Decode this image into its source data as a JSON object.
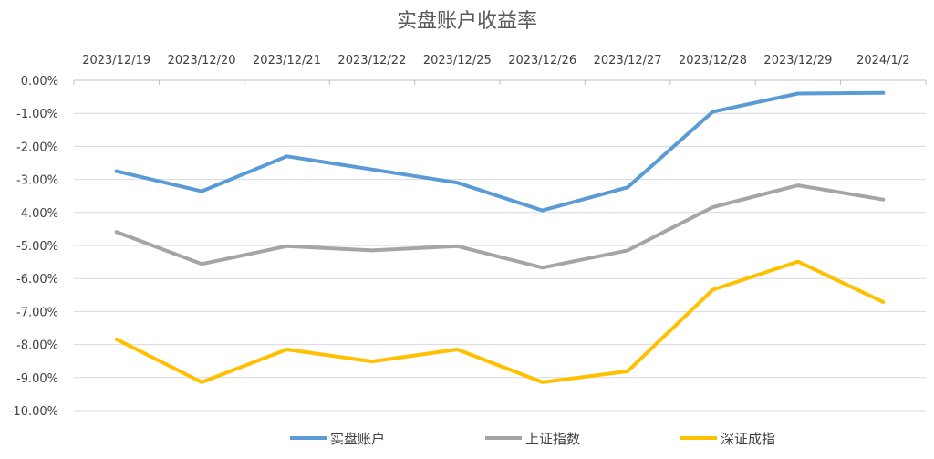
{
  "chart_data": {
    "type": "line",
    "title": "实盘账户收益率",
    "categories": [
      "2023/12/19",
      "2023/12/20",
      "2023/12/21",
      "2023/12/22",
      "2023/12/25",
      "2023/12/26",
      "2023/12/27",
      "2023/12/28",
      "2023/12/29",
      "2024/1/2"
    ],
    "y_ticks": [
      "0.00%",
      "-1.00%",
      "-2.00%",
      "-3.00%",
      "-4.00%",
      "-5.00%",
      "-6.00%",
      "-7.00%",
      "-8.00%",
      "-9.00%",
      "-10.00%"
    ],
    "ylim": [
      -10,
      0
    ],
    "grid": true,
    "x_axis_position": "top",
    "legend_position": "bottom",
    "series": [
      {
        "name": "实盘账户",
        "color": "#5B9BD5",
        "values": [
          -2.75,
          -3.36,
          -2.3,
          -2.7,
          -3.1,
          -3.94,
          -3.24,
          -0.95,
          -0.4,
          -0.38
        ]
      },
      {
        "name": "上证指数",
        "color": "#A5A5A5",
        "values": [
          -4.59,
          -5.56,
          -5.02,
          -5.15,
          -5.02,
          -5.67,
          -5.15,
          -3.84,
          -3.18,
          -3.61
        ]
      },
      {
        "name": "深证成指",
        "color": "#FFC000",
        "values": [
          -7.84,
          -9.14,
          -8.15,
          -8.51,
          -8.15,
          -9.14,
          -8.81,
          -6.34,
          -5.49,
          -6.71
        ]
      }
    ]
  }
}
